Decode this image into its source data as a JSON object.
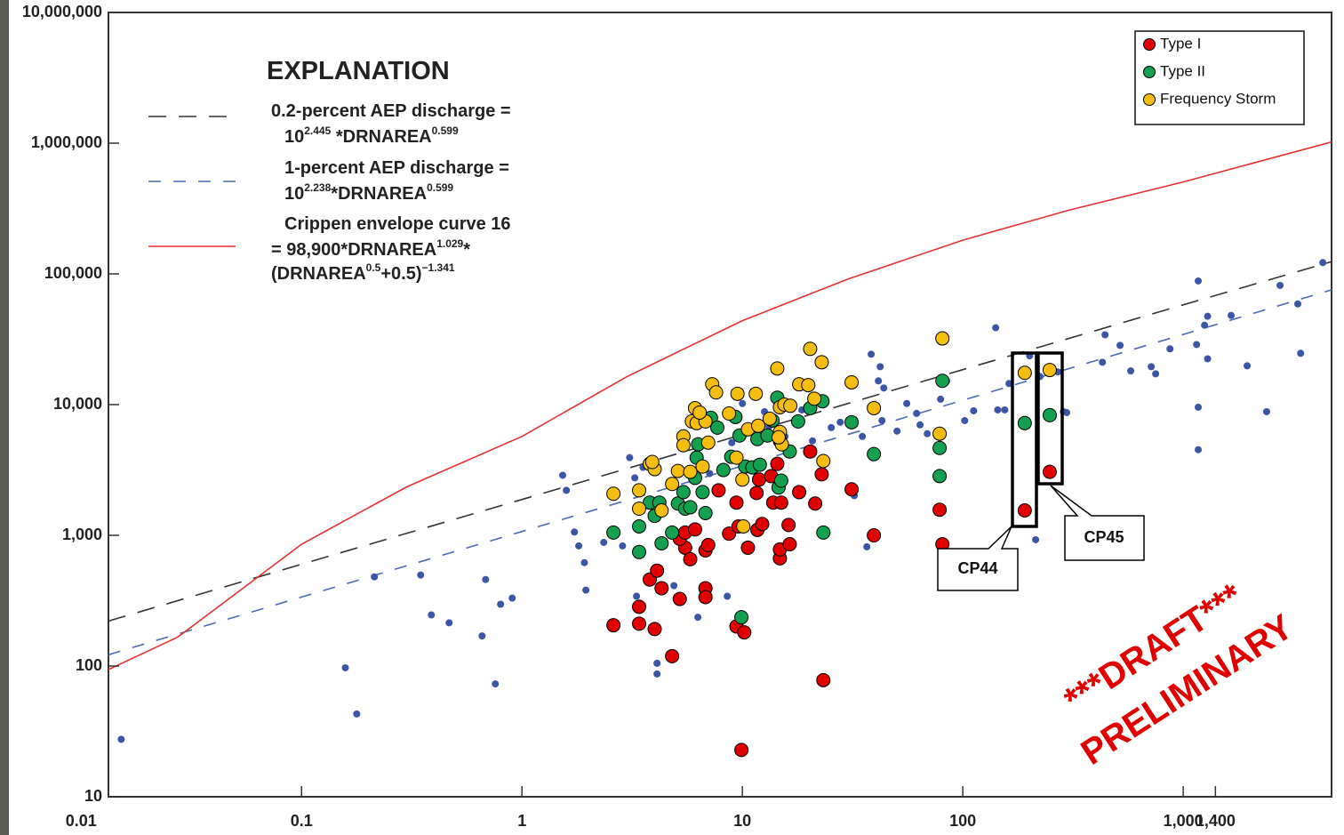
{
  "chart_data": {
    "type": "scatter",
    "log_x": true,
    "log_y": true,
    "xlim": [
      0.0133,
      4710
    ],
    "ylim": [
      10,
      10000000
    ],
    "xticks": [
      0.01,
      0.1,
      1,
      10,
      100,
      {
        "value": 1000,
        "label": "1,000"
      },
      {
        "value": 1400,
        "label": "1,400"
      }
    ],
    "yticks": [
      10,
      100,
      {
        "value": 1000,
        "label": "1,000"
      },
      {
        "value": 10000,
        "label": "10,000"
      },
      {
        "value": 100000,
        "label": "100,000"
      },
      {
        "value": 1000000,
        "label": "1,000,000"
      },
      {
        "value": 10000000,
        "label": "10,000,000"
      }
    ],
    "legend_position": "upper right",
    "explanation": {
      "title": "EXPLANATION",
      "lines": [
        {
          "color": "#333333",
          "dashed": true,
          "label": [
            [
              "0.2-percent AEP discharge ="
            ],
            [
              "10",
              "2.445",
              " *DRNAREA",
              "0.599"
            ]
          ],
          "x": [
            0.0133,
            0.1,
            1,
            10,
            100,
            1000,
            4710
          ],
          "values": [
            221,
            601,
            1880,
            5900,
            18500,
            58000,
            124000
          ]
        },
        {
          "color": "#4a6bb5",
          "dashed": true,
          "label": [
            [
              "1-percent AEP discharge ="
            ],
            [
              "10",
              "2.238",
              "*DRNAREA",
              "0.599"
            ]
          ],
          "x": [
            0.0133,
            0.1,
            1,
            10,
            100,
            1000,
            4710
          ],
          "values": [
            122,
            337,
            1070,
            3400,
            10800,
            34400,
            75500
          ]
        },
        {
          "color": "#e83030",
          "dashed": false,
          "label": [
            [
              "Crippen envelope curve 16"
            ],
            [
              "= 98,900*DRNAREA",
              "1.029",
              "*"
            ],
            [
              "(DRNAREA",
              "0.5",
              "+0.5)",
              "−1.341"
            ]
          ],
          "x": [
            0.0133,
            0.0275,
            0.1,
            0.3,
            1,
            3,
            10,
            30,
            100,
            300,
            1000,
            4710
          ],
          "values": [
            94,
            167,
            855,
            2350,
            5710,
            16400,
            43900,
            91000,
            181000,
            306000,
            505000,
            1020000
          ]
        }
      ]
    },
    "series": [
      {
        "color": "#3b55a8",
        "x": [
          0.0152,
          0.158,
          0.178,
          0.214,
          0.347,
          0.388,
          0.467,
          0.659,
          0.684,
          0.757,
          0.8,
          0.903,
          1.53,
          1.59,
          1.73,
          1.81,
          1.92,
          1.95,
          2.35,
          2.86,
          3.08,
          3.25,
          3.31,
          3.54,
          4.1,
          4.1,
          4.89,
          6.28,
          7.1,
          7.78,
          8.54,
          9.46,
          8.95,
          10,
          12.6,
          13.2,
          15.6,
          16.7,
          18.6,
          20.8,
          25.3,
          27.8,
          32.2,
          38.4,
          41.4,
          42.2,
          43,
          43.8,
          35,
          36.7,
          50.3,
          55.7,
          61.7,
          64,
          69,
          79.3,
          84.6,
          102,
          112,
          141,
          144,
          155,
          162,
          201,
          214,
          224,
          270,
          286,
          296,
          430,
          442,
          517,
          578,
          716,
          750,
          871,
          1150,
          1170,
          1170,
          1170,
          1250,
          1290,
          1290,
          1650,
          1950,
          2390,
          2750,
          3310,
          3410,
          4300
        ],
        "values": [
          27.5,
          97,
          43,
          481,
          497,
          246,
          214,
          170,
          459,
          73,
          297,
          331,
          2880,
          2210,
          1060,
          830,
          618,
          381,
          883,
          830,
          3930,
          2750,
          342,
          3310,
          105,
          87,
          412,
          236,
          2970,
          2320,
          342,
          1860,
          5120,
          10200,
          8830,
          6780,
          5710,
          1240,
          9100,
          5280,
          6670,
          7330,
          2010,
          24300,
          15200,
          19500,
          7550,
          13400,
          5710,
          817,
          6270,
          10200,
          8560,
          7000,
          5990,
          11000,
          15200,
          7550,
          8970,
          38700,
          9110,
          9110,
          14500,
          23600,
          925,
          16400,
          17800,
          8830,
          8690,
          21100,
          34200,
          28400,
          18100,
          19500,
          17200,
          26700,
          28800,
          88300,
          9550,
          4520,
          40500,
          22400,
          47400,
          48100,
          19800,
          8830,
          81600,
          58900,
          24700,
          122000
        ]
      },
      {
        "name": "Type I",
        "color": "#e00000",
        "x": [
          2.6,
          3.4,
          3.4,
          4.0,
          4.8,
          3.8,
          4.1,
          4.3,
          5.2,
          5.5,
          5.2,
          5.5,
          5.8,
          6.1,
          6.8,
          6.8,
          6.8,
          7.0,
          7.8,
          8.7,
          9.4,
          9.6,
          10.6,
          11.6,
          11.7,
          11.9,
          12.3,
          13.5,
          13.8,
          14.4,
          14.8,
          14.8,
          15.0,
          16.4,
          18.1,
          20.3,
          21.4,
          22.9,
          23.3,
          31.3,
          39.5,
          9.9,
          9.4,
          10.2,
          78.5,
          80.8,
          191,
          248,
          14.8,
          16.2
        ],
        "values": [
          205,
          284,
          211,
          192,
          119,
          459,
          537,
          394,
          326,
          804,
          939,
          1050,
          657,
          1110,
          767,
          394,
          337,
          843,
          2210,
          1030,
          1780,
          1170,
          804,
          2110,
          1100,
          2670,
          1220,
          2840,
          1780,
          3520,
          667,
          780,
          1780,
          855,
          2140,
          4380,
          1750,
          2930,
          78,
          2250,
          1000,
          22.8,
          201,
          181,
          1570,
          855,
          1550,
          3060,
          5280,
          1200
        ]
      },
      {
        "name": "Type II",
        "color": "#13a04f",
        "x": [
          2.6,
          3.4,
          3.4,
          3.8,
          4.2,
          4.0,
          4.3,
          4.8,
          5.1,
          5.4,
          5.5,
          5.8,
          6.1,
          6.2,
          6.3,
          6.6,
          6.8,
          7.2,
          7.7,
          8.2,
          8.9,
          9.3,
          9.7,
          10.3,
          11.1,
          11.7,
          12.0,
          13.0,
          13.7,
          14.4,
          14.6,
          15.0,
          16.4,
          17.9,
          20.3,
          23.1,
          23.3,
          31.3,
          39.5,
          78.5,
          78.5,
          80.8,
          191,
          248,
          9.9
        ],
        "values": [
          1050,
          1170,
          745,
          1780,
          1780,
          1410,
          869,
          1050,
          1750,
          2140,
          1600,
          1640,
          2750,
          3930,
          4970,
          2140,
          1480,
          7920,
          6670,
          3160,
          3990,
          8040,
          5800,
          3360,
          3310,
          5450,
          3470,
          5800,
          7560,
          11300,
          2320,
          2620,
          4380,
          7440,
          9400,
          10600,
          1050,
          7330,
          4180,
          2840,
          4660,
          15200,
          7220,
          8300,
          236
        ]
      },
      {
        "name": "Frequency Storm",
        "color": "#f5bd10",
        "x": [
          2.6,
          3.4,
          3.4,
          3.8,
          4.0,
          4.3,
          4.8,
          5.1,
          5.4,
          5.4,
          5.8,
          5.9,
          6.1,
          6.2,
          6.6,
          6.8,
          7.0,
          7.3,
          7.6,
          8.7,
          9.4,
          9.5,
          10,
          10.1,
          10.6,
          11.5,
          11.8,
          13.3,
          14.4,
          14.8,
          14.8,
          15.1,
          15.5,
          16.5,
          18.1,
          19.9,
          20.3,
          21.2,
          22.9,
          23.3,
          31.3,
          39.5,
          78.5,
          80.8,
          191,
          248,
          3.9,
          6.4,
          14.6
        ],
        "values": [
          2080,
          2210,
          1600,
          3520,
          3210,
          1550,
          2470,
          3110,
          5710,
          4890,
          3060,
          7440,
          9400,
          7220,
          3360,
          7440,
          5120,
          14300,
          12400,
          8550,
          3930,
          12100,
          2670,
          1170,
          6470,
          12100,
          6890,
          7800,
          18900,
          6180,
          9550,
          4970,
          10000,
          9800,
          14300,
          14100,
          26700,
          11100,
          21100,
          3700,
          14800,
          9400,
          5990,
          32100,
          17500,
          18400,
          3640,
          8690,
          5620
        ]
      }
    ],
    "annotations": [
      {
        "text": "CP44"
      },
      {
        "text": "CP45"
      },
      {
        "text": "***DRAFT***"
      },
      {
        "text": "PRELIMINARY"
      }
    ]
  }
}
